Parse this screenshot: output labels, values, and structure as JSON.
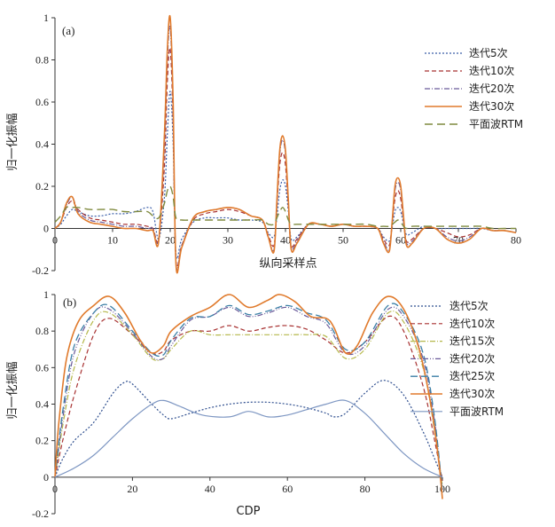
{
  "chart_data": [
    {
      "type": "line",
      "panel_label": "(a)",
      "xlabel": "纵向采样点",
      "ylabel": "归一化振幅",
      "xlim": [
        0,
        80
      ],
      "ylim": [
        -0.2,
        1
      ],
      "xticks": [
        0,
        10,
        20,
        30,
        40,
        50,
        60,
        70,
        80
      ],
      "yticks": [
        -0.2,
        0,
        0.2,
        0.4,
        0.6,
        0.8,
        1
      ],
      "ytick_labels": [
        "-0.2",
        "0",
        "0.2",
        "0.4",
        "0.6",
        "0.8",
        "1"
      ],
      "legend_position": "top-right",
      "series": [
        {
          "name": "迭代5次",
          "color": "#3a5ea8",
          "dash": "2,2",
          "width": 1.2,
          "x": [
            0,
            1,
            2,
            3,
            4,
            6,
            8,
            10,
            12,
            14,
            16,
            17,
            18,
            19,
            19.5,
            20,
            20.5,
            21,
            22,
            24,
            26,
            28,
            30,
            32,
            34,
            36,
            37,
            38,
            38.5,
            39,
            39.5,
            40,
            40.5,
            41,
            42,
            44,
            46,
            48,
            50,
            52,
            54,
            56,
            57,
            58,
            58.5,
            59,
            59.5,
            60,
            60.5,
            61,
            62,
            64,
            66,
            68,
            70,
            72,
            74,
            76,
            78,
            80
          ],
          "y": [
            0,
            0.02,
            0.06,
            0.09,
            0.08,
            0.06,
            0.06,
            0.07,
            0.07,
            0.08,
            0.1,
            0.08,
            -0.05,
            0.15,
            0.45,
            0.65,
            0.4,
            -0.12,
            -0.05,
            0.03,
            0.05,
            0.05,
            0.05,
            0.04,
            0.04,
            0.03,
            -0.02,
            -0.04,
            0.05,
            0.18,
            0.23,
            0.2,
            0.08,
            -0.05,
            -0.04,
            0.02,
            0.02,
            0.01,
            0.02,
            0.01,
            0.01,
            0,
            -0.04,
            -0.06,
            0,
            0.08,
            0.1,
            0.08,
            0.02,
            -0.03,
            -0.02,
            0.01,
            0,
            0,
            0,
            0,
            0,
            -0.01,
            -0.01,
            -0.02
          ]
        },
        {
          "name": "迭代10次",
          "color": "#a83232",
          "dash": "5,3",
          "width": 1.2,
          "x": [
            0,
            1,
            2,
            3,
            4,
            6,
            8,
            10,
            12,
            14,
            16,
            17,
            18,
            19,
            19.5,
            20,
            20.5,
            21,
            22,
            24,
            26,
            28,
            30,
            32,
            34,
            36,
            37,
            38,
            38.5,
            39,
            39.5,
            40,
            40.5,
            41,
            42,
            44,
            46,
            48,
            50,
            52,
            54,
            56,
            57,
            58,
            58.5,
            59,
            59.5,
            60,
            60.5,
            61,
            62,
            64,
            66,
            68,
            70,
            72,
            74,
            76,
            78,
            80
          ],
          "y": [
            0,
            0.03,
            0.1,
            0.13,
            0.09,
            0.05,
            0.04,
            0.03,
            0.02,
            0.02,
            0.01,
            0,
            -0.05,
            0.3,
            0.7,
            0.85,
            0.5,
            -0.15,
            -0.08,
            0.04,
            0.07,
            0.08,
            0.09,
            0.08,
            0.06,
            0.04,
            -0.03,
            -0.08,
            0.1,
            0.3,
            0.36,
            0.3,
            0.1,
            -0.08,
            -0.05,
            0.02,
            0.02,
            0.01,
            0.02,
            0.01,
            0.01,
            0,
            -0.05,
            -0.08,
            0.02,
            0.14,
            0.18,
            0.14,
            0.03,
            -0.06,
            -0.05,
            0,
            0,
            -0.02,
            -0.04,
            -0.03,
            0,
            -0.01,
            -0.01,
            -0.02
          ]
        },
        {
          "name": "迭代20次",
          "color": "#6a5a9a",
          "dash": "6,2,1,2",
          "width": 1.2,
          "x": [
            0,
            1,
            2,
            3,
            4,
            6,
            8,
            10,
            12,
            14,
            16,
            17,
            18,
            19,
            19.5,
            20,
            20.5,
            21,
            22,
            24,
            26,
            28,
            30,
            32,
            34,
            36,
            37,
            38,
            38.5,
            39,
            39.5,
            40,
            40.5,
            41,
            42,
            44,
            46,
            48,
            50,
            52,
            54,
            56,
            57,
            58,
            58.5,
            59,
            59.5,
            60,
            60.5,
            61,
            62,
            64,
            66,
            68,
            70,
            72,
            74,
            76,
            78,
            80
          ],
          "y": [
            0,
            0.03,
            0.11,
            0.15,
            0.08,
            0.04,
            0.03,
            0.02,
            0.01,
            0.01,
            0,
            0,
            -0.05,
            0.4,
            0.8,
            0.95,
            0.55,
            -0.16,
            -0.08,
            0.05,
            0.08,
            0.09,
            0.1,
            0.09,
            0.06,
            0.04,
            -0.04,
            -0.1,
            0.12,
            0.35,
            0.42,
            0.35,
            0.12,
            -0.09,
            -0.06,
            0.02,
            0.02,
            0.01,
            0.02,
            0.01,
            0.01,
            0,
            -0.06,
            -0.1,
            0.03,
            0.18,
            0.22,
            0.18,
            0.04,
            -0.07,
            -0.06,
            0,
            0,
            -0.04,
            -0.06,
            -0.04,
            0,
            -0.01,
            -0.01,
            -0.02
          ]
        },
        {
          "name": "迭代30次",
          "color": "#e07a2c",
          "dash": "",
          "width": 1.6,
          "x": [
            0,
            1,
            2,
            3,
            4,
            6,
            8,
            10,
            12,
            14,
            16,
            17,
            18,
            19,
            19.5,
            20,
            20.5,
            21,
            22,
            24,
            26,
            28,
            30,
            32,
            34,
            36,
            37,
            38,
            38.5,
            39,
            39.5,
            40,
            40.5,
            41,
            42,
            44,
            46,
            48,
            50,
            52,
            54,
            56,
            57,
            58,
            58.5,
            59,
            59.5,
            60,
            60.5,
            61,
            62,
            64,
            66,
            68,
            70,
            72,
            74,
            76,
            78,
            80
          ],
          "y": [
            0,
            0.03,
            0.12,
            0.15,
            0.07,
            0.03,
            0.02,
            0.01,
            0,
            0,
            -0.01,
            -0.01,
            -0.06,
            0.45,
            0.85,
            1.0,
            0.6,
            -0.17,
            -0.09,
            0.05,
            0.08,
            0.09,
            0.1,
            0.09,
            0.06,
            0.04,
            -0.04,
            -0.11,
            0.13,
            0.37,
            0.44,
            0.37,
            0.13,
            -0.1,
            -0.07,
            0.02,
            0.02,
            0.01,
            0.02,
            0.01,
            0.01,
            0,
            -0.07,
            -0.11,
            0.03,
            0.2,
            0.24,
            0.2,
            0.05,
            -0.08,
            -0.07,
            0,
            0,
            -0.05,
            -0.07,
            -0.05,
            0,
            -0.01,
            -0.01,
            -0.02
          ]
        },
        {
          "name": "平面波RTM",
          "color": "#7f8a3e",
          "dash": "9,5",
          "width": 1.4,
          "x": [
            0,
            1,
            2,
            3,
            4,
            6,
            8,
            10,
            12,
            14,
            16,
            17,
            18,
            19,
            19.5,
            20,
            20.5,
            21,
            22,
            24,
            26,
            28,
            30,
            32,
            34,
            36,
            37,
            38,
            38.5,
            39,
            39.5,
            40,
            40.5,
            41,
            42,
            44,
            46,
            48,
            50,
            52,
            54,
            56,
            57,
            58,
            58.5,
            59,
            59.5,
            60,
            60.5,
            61,
            62,
            64,
            66,
            68,
            70,
            72,
            74,
            76,
            78,
            80
          ],
          "y": [
            0.03,
            0.06,
            0.1,
            0.1,
            0.1,
            0.09,
            0.09,
            0.09,
            0.08,
            0.08,
            0.08,
            0.06,
            0.05,
            0.12,
            0.18,
            0.2,
            0.15,
            0.05,
            0.04,
            0.04,
            0.04,
            0.04,
            0.04,
            0.04,
            0.04,
            0.04,
            0.02,
            0.02,
            0.05,
            0.08,
            0.1,
            0.08,
            0.04,
            0.02,
            0.02,
            0.02,
            0.02,
            0.02,
            0.02,
            0.02,
            0.02,
            0.01,
            0.01,
            0.01,
            0.02,
            0.03,
            0.04,
            0.03,
            0.01,
            0,
            0.01,
            0.01,
            0.01,
            0.01,
            0.01,
            0.01,
            0.01,
            0,
            0,
            0
          ]
        }
      ]
    },
    {
      "type": "line",
      "panel_label": "(b)",
      "xlabel": "CDP",
      "ylabel": "归一化振幅",
      "xlim": [
        0,
        100
      ],
      "ylim": [
        -0.2,
        1
      ],
      "xticks": [
        0,
        20,
        40,
        60,
        80,
        100
      ],
      "yticks": [
        -0.2,
        0,
        0.2,
        0.4,
        0.6,
        0.8,
        1
      ],
      "ytick_labels": [
        "-0.2",
        "0",
        "0.2",
        "0.4",
        "0.6",
        "0.8",
        "1"
      ],
      "legend_position": "top-right",
      "series": [
        {
          "name": "迭代5次",
          "color": "#2f4f8f",
          "dash": "2,2",
          "width": 1.2,
          "x": [
            0,
            2,
            5,
            10,
            15,
            18,
            20,
            25,
            28,
            30,
            35,
            40,
            45,
            50,
            55,
            60,
            65,
            70,
            72,
            75,
            80,
            85,
            90,
            95,
            98,
            100
          ],
          "y": [
            0,
            0.1,
            0.2,
            0.3,
            0.46,
            0.52,
            0.51,
            0.4,
            0.34,
            0.32,
            0.35,
            0.38,
            0.4,
            0.41,
            0.41,
            0.4,
            0.38,
            0.35,
            0.33,
            0.35,
            0.46,
            0.53,
            0.45,
            0.25,
            0.1,
            0
          ]
        },
        {
          "name": "迭代10次",
          "color": "#a83232",
          "dash": "5,3",
          "width": 1.2,
          "x": [
            0,
            2,
            5,
            10,
            14,
            20,
            25,
            28,
            30,
            35,
            40,
            45,
            50,
            55,
            60,
            65,
            70,
            75,
            80,
            86,
            90,
            95,
            98,
            100
          ],
          "y": [
            0,
            0.2,
            0.45,
            0.78,
            0.87,
            0.78,
            0.68,
            0.69,
            0.75,
            0.8,
            0.8,
            0.83,
            0.8,
            0.82,
            0.83,
            0.81,
            0.75,
            0.68,
            0.74,
            0.88,
            0.8,
            0.5,
            0.2,
            -0.02
          ]
        },
        {
          "name": "迭代15次",
          "color": "#b5b84a",
          "dash": "6,2,1,2",
          "width": 1.2,
          "x": [
            0,
            2,
            5,
            10,
            14,
            20,
            25,
            28,
            30,
            35,
            40,
            45,
            50,
            55,
            60,
            65,
            70,
            75,
            80,
            86,
            90,
            95,
            98,
            100
          ],
          "y": [
            0,
            0.28,
            0.6,
            0.86,
            0.9,
            0.78,
            0.65,
            0.65,
            0.7,
            0.8,
            0.78,
            0.78,
            0.78,
            0.78,
            0.78,
            0.78,
            0.77,
            0.65,
            0.7,
            0.9,
            0.85,
            0.6,
            0.25,
            -0.05
          ]
        },
        {
          "name": "迭代20次",
          "color": "#6a5a9a",
          "dash": "6,2,1,2,1,2",
          "width": 1.2,
          "x": [
            0,
            2,
            5,
            10,
            14,
            20,
            25,
            28,
            30,
            35,
            40,
            45,
            50,
            55,
            60,
            65,
            70,
            75,
            80,
            86,
            90,
            95,
            98,
            100
          ],
          "y": [
            0,
            0.32,
            0.68,
            0.9,
            0.92,
            0.79,
            0.66,
            0.65,
            0.72,
            0.86,
            0.88,
            0.93,
            0.88,
            0.9,
            0.93,
            0.88,
            0.84,
            0.68,
            0.72,
            0.92,
            0.88,
            0.65,
            0.3,
            -0.07
          ]
        },
        {
          "name": "迭代25次",
          "color": "#3b7fa6",
          "dash": "8,4",
          "width": 1.3,
          "x": [
            0,
            2,
            5,
            10,
            14,
            20,
            25,
            28,
            30,
            35,
            40,
            45,
            50,
            55,
            60,
            65,
            70,
            75,
            80,
            86,
            90,
            95,
            98,
            100
          ],
          "y": [
            0,
            0.36,
            0.72,
            0.9,
            0.94,
            0.8,
            0.68,
            0.67,
            0.75,
            0.87,
            0.88,
            0.94,
            0.89,
            0.91,
            0.94,
            0.9,
            0.86,
            0.7,
            0.74,
            0.94,
            0.9,
            0.68,
            0.32,
            -0.08
          ]
        },
        {
          "name": "迭代30次",
          "color": "#e07a2c",
          "dash": "",
          "width": 1.6,
          "x": [
            0,
            1,
            3,
            6,
            10,
            14,
            18,
            22,
            25,
            28,
            30,
            35,
            40,
            45,
            50,
            55,
            58,
            62,
            66,
            70,
            72,
            75,
            78,
            82,
            86,
            90,
            94,
            97,
            99,
            100
          ],
          "y": [
            0,
            0.3,
            0.65,
            0.85,
            0.94,
            0.99,
            0.9,
            0.75,
            0.68,
            0.72,
            0.8,
            0.88,
            0.93,
            1.0,
            0.93,
            0.97,
            1.0,
            0.96,
            0.88,
            0.87,
            0.82,
            0.68,
            0.72,
            0.9,
            0.99,
            0.92,
            0.7,
            0.4,
            0.1,
            -0.12
          ]
        },
        {
          "name": "平面波RTM",
          "color": "#7d96c2",
          "dash": "",
          "width": 1.2,
          "x": [
            0,
            5,
            10,
            15,
            20,
            25,
            28,
            32,
            38,
            45,
            50,
            55,
            60,
            65,
            70,
            75,
            80,
            85,
            90,
            95,
            100
          ],
          "y": [
            0,
            0.05,
            0.12,
            0.22,
            0.32,
            0.4,
            0.42,
            0.39,
            0.34,
            0.33,
            0.36,
            0.33,
            0.34,
            0.37,
            0.4,
            0.42,
            0.35,
            0.24,
            0.13,
            0.05,
            0
          ]
        }
      ]
    }
  ]
}
